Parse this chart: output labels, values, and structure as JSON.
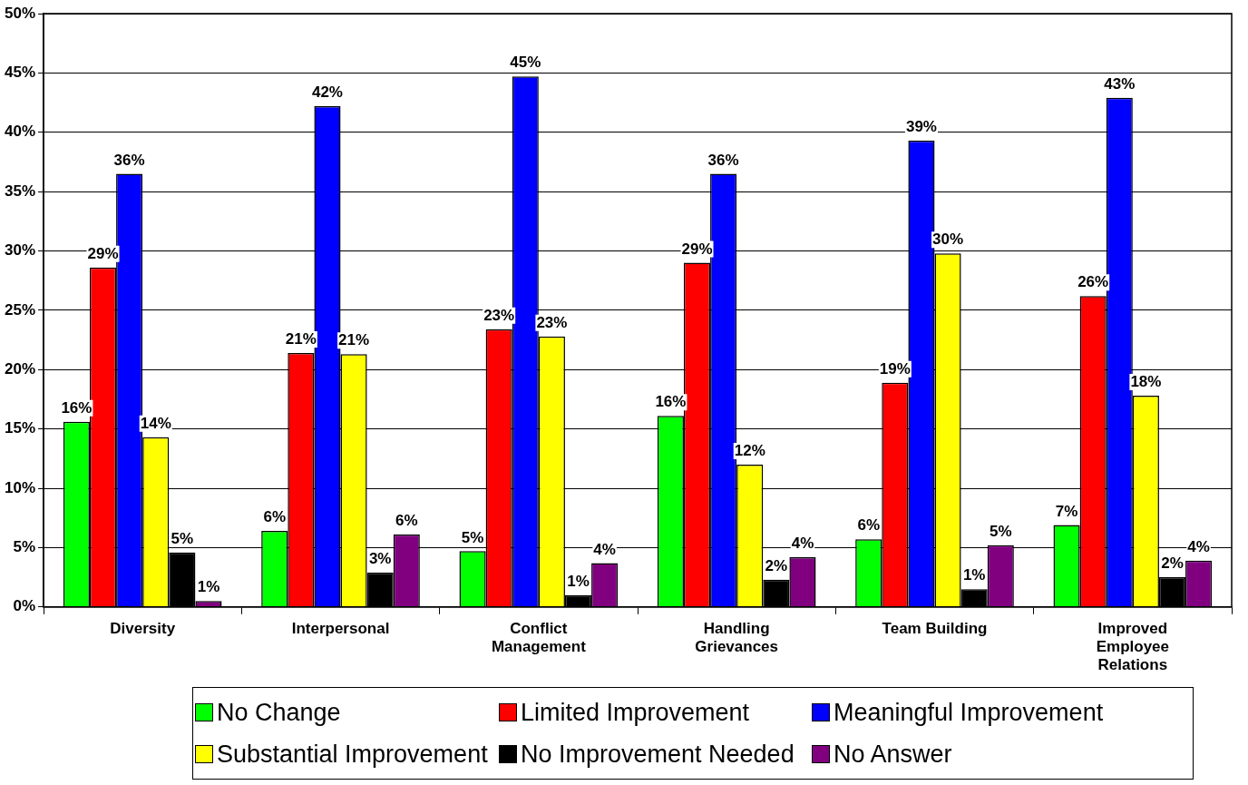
{
  "chart_data": {
    "type": "bar",
    "categories": [
      "Diversity",
      "Interpersonal",
      "Conflict Management",
      "Handling Grievances",
      "Team Building",
      "Improved Employee Relations"
    ],
    "series": [
      {
        "name": "No Change",
        "color": "#00ff00",
        "values": [
          15.6,
          6.4,
          4.7,
          16.1,
          5.7,
          6.9
        ],
        "value_labels": [
          "16%",
          "6%",
          "5%",
          "16%",
          "6%",
          "7%"
        ]
      },
      {
        "name": "Limited Improvement",
        "color": "#ff0000",
        "values": [
          28.6,
          21.4,
          23.4,
          29.0,
          18.9,
          26.2
        ],
        "value_labels": [
          "29%",
          "21%",
          "23%",
          "29%",
          "19%",
          "26%"
        ]
      },
      {
        "name": "Meaningful Improvement",
        "color": "#0000ff",
        "values": [
          36.5,
          42.2,
          44.7,
          36.5,
          39.3,
          42.9
        ],
        "value_labels": [
          "36%",
          "42%",
          "45%",
          "36%",
          "39%",
          "43%"
        ]
      },
      {
        "name": "Substantial Improvement",
        "color": "#ffff00",
        "values": [
          14.3,
          21.3,
          22.8,
          12.0,
          29.8,
          17.8
        ],
        "value_labels": [
          "14%",
          "21%",
          "23%",
          "12%",
          "30%",
          "18%"
        ]
      },
      {
        "name": "No Improvement Needed",
        "color": "#000000",
        "values": [
          4.6,
          2.9,
          1.0,
          2.3,
          1.5,
          2.5
        ],
        "value_labels": [
          "5%",
          "3%",
          "1%",
          "2%",
          "1%",
          "2%"
        ]
      },
      {
        "name": "No Answer",
        "color": "#800080",
        "values": [
          0.5,
          6.1,
          3.7,
          4.2,
          5.2,
          3.9
        ],
        "value_labels": [
          "1%",
          "6%",
          "4%",
          "4%",
          "5%",
          "4%"
        ]
      }
    ],
    "ylim": [
      0,
      50
    ],
    "yticks": [
      {
        "value": 0,
        "label": "0%"
      },
      {
        "value": 5,
        "label": "5%"
      },
      {
        "value": 10,
        "label": "10%"
      },
      {
        "value": 15,
        "label": "15%"
      },
      {
        "value": 20,
        "label": "20%"
      },
      {
        "value": 25,
        "label": "25%"
      },
      {
        "value": 30,
        "label": "30%"
      },
      {
        "value": 35,
        "label": "35%"
      },
      {
        "value": 40,
        "label": "40%"
      },
      {
        "value": 45,
        "label": "45%"
      },
      {
        "value": 50,
        "label": "50%"
      }
    ],
    "grid": "y",
    "legend": "bottom"
  }
}
